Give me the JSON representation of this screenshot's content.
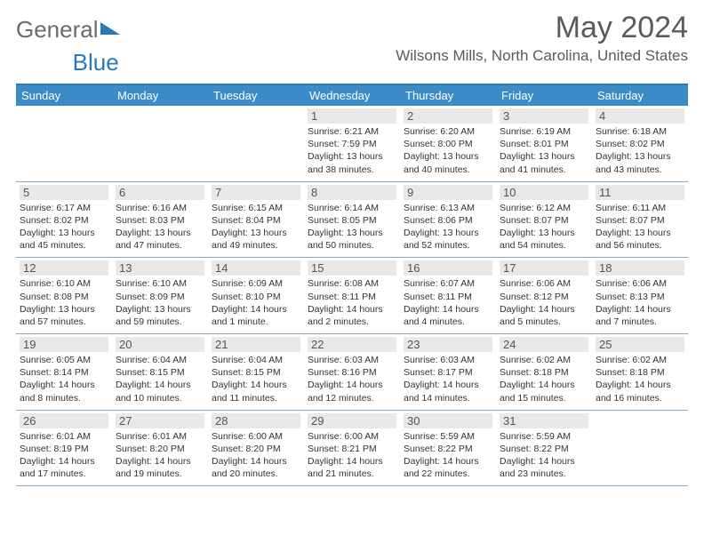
{
  "logo_text_a": "General",
  "logo_text_b": "Blue",
  "month_title": "May 2024",
  "location": "Wilsons Mills, North Carolina, United States",
  "header_bg": "#3b8bc9",
  "accent": "#2a7ab9",
  "daynum_bg": "#e8e8e8",
  "divider": "#8aa8bf",
  "text_color": "#333333",
  "day_names": [
    "Sunday",
    "Monday",
    "Tuesday",
    "Wednesday",
    "Thursday",
    "Friday",
    "Saturday"
  ],
  "weeks": [
    [
      null,
      null,
      null,
      {
        "n": "1",
        "sr": "6:21 AM",
        "ss": "7:59 PM",
        "dl": "13 hours and 38 minutes."
      },
      {
        "n": "2",
        "sr": "6:20 AM",
        "ss": "8:00 PM",
        "dl": "13 hours and 40 minutes."
      },
      {
        "n": "3",
        "sr": "6:19 AM",
        "ss": "8:01 PM",
        "dl": "13 hours and 41 minutes."
      },
      {
        "n": "4",
        "sr": "6:18 AM",
        "ss": "8:02 PM",
        "dl": "13 hours and 43 minutes."
      }
    ],
    [
      {
        "n": "5",
        "sr": "6:17 AM",
        "ss": "8:02 PM",
        "dl": "13 hours and 45 minutes."
      },
      {
        "n": "6",
        "sr": "6:16 AM",
        "ss": "8:03 PM",
        "dl": "13 hours and 47 minutes."
      },
      {
        "n": "7",
        "sr": "6:15 AM",
        "ss": "8:04 PM",
        "dl": "13 hours and 49 minutes."
      },
      {
        "n": "8",
        "sr": "6:14 AM",
        "ss": "8:05 PM",
        "dl": "13 hours and 50 minutes."
      },
      {
        "n": "9",
        "sr": "6:13 AM",
        "ss": "8:06 PM",
        "dl": "13 hours and 52 minutes."
      },
      {
        "n": "10",
        "sr": "6:12 AM",
        "ss": "8:07 PM",
        "dl": "13 hours and 54 minutes."
      },
      {
        "n": "11",
        "sr": "6:11 AM",
        "ss": "8:07 PM",
        "dl": "13 hours and 56 minutes."
      }
    ],
    [
      {
        "n": "12",
        "sr": "6:10 AM",
        "ss": "8:08 PM",
        "dl": "13 hours and 57 minutes."
      },
      {
        "n": "13",
        "sr": "6:10 AM",
        "ss": "8:09 PM",
        "dl": "13 hours and 59 minutes."
      },
      {
        "n": "14",
        "sr": "6:09 AM",
        "ss": "8:10 PM",
        "dl": "14 hours and 1 minute."
      },
      {
        "n": "15",
        "sr": "6:08 AM",
        "ss": "8:11 PM",
        "dl": "14 hours and 2 minutes."
      },
      {
        "n": "16",
        "sr": "6:07 AM",
        "ss": "8:11 PM",
        "dl": "14 hours and 4 minutes."
      },
      {
        "n": "17",
        "sr": "6:06 AM",
        "ss": "8:12 PM",
        "dl": "14 hours and 5 minutes."
      },
      {
        "n": "18",
        "sr": "6:06 AM",
        "ss": "8:13 PM",
        "dl": "14 hours and 7 minutes."
      }
    ],
    [
      {
        "n": "19",
        "sr": "6:05 AM",
        "ss": "8:14 PM",
        "dl": "14 hours and 8 minutes."
      },
      {
        "n": "20",
        "sr": "6:04 AM",
        "ss": "8:15 PM",
        "dl": "14 hours and 10 minutes."
      },
      {
        "n": "21",
        "sr": "6:04 AM",
        "ss": "8:15 PM",
        "dl": "14 hours and 11 minutes."
      },
      {
        "n": "22",
        "sr": "6:03 AM",
        "ss": "8:16 PM",
        "dl": "14 hours and 12 minutes."
      },
      {
        "n": "23",
        "sr": "6:03 AM",
        "ss": "8:17 PM",
        "dl": "14 hours and 14 minutes."
      },
      {
        "n": "24",
        "sr": "6:02 AM",
        "ss": "8:18 PM",
        "dl": "14 hours and 15 minutes."
      },
      {
        "n": "25",
        "sr": "6:02 AM",
        "ss": "8:18 PM",
        "dl": "14 hours and 16 minutes."
      }
    ],
    [
      {
        "n": "26",
        "sr": "6:01 AM",
        "ss": "8:19 PM",
        "dl": "14 hours and 17 minutes."
      },
      {
        "n": "27",
        "sr": "6:01 AM",
        "ss": "8:20 PM",
        "dl": "14 hours and 19 minutes."
      },
      {
        "n": "28",
        "sr": "6:00 AM",
        "ss": "8:20 PM",
        "dl": "14 hours and 20 minutes."
      },
      {
        "n": "29",
        "sr": "6:00 AM",
        "ss": "8:21 PM",
        "dl": "14 hours and 21 minutes."
      },
      {
        "n": "30",
        "sr": "5:59 AM",
        "ss": "8:22 PM",
        "dl": "14 hours and 22 minutes."
      },
      {
        "n": "31",
        "sr": "5:59 AM",
        "ss": "8:22 PM",
        "dl": "14 hours and 23 minutes."
      },
      null
    ]
  ]
}
